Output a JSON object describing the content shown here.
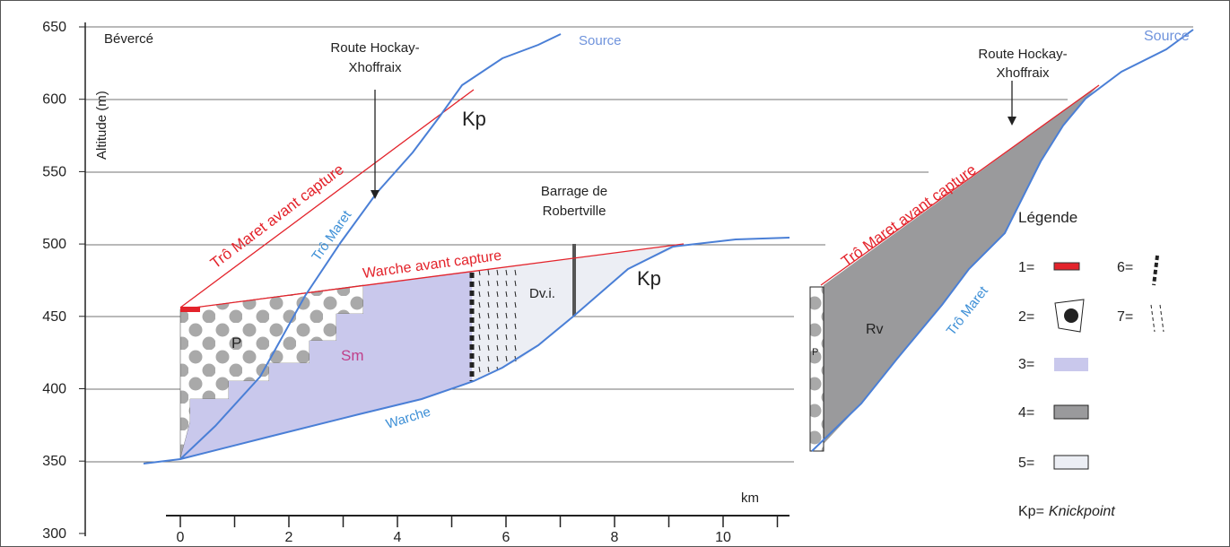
{
  "axis": {
    "y_label": "Altitude (m)",
    "y_ticks": [
      "650",
      "600",
      "550",
      "500",
      "450",
      "400",
      "350",
      "300"
    ],
    "x_unit": "km",
    "x_ticks": [
      "0",
      "2",
      "4",
      "6",
      "8",
      "10"
    ]
  },
  "left_profile": {
    "place": "Bévercé",
    "source": "Source",
    "road": [
      "Route Hockay-",
      "Xhoffraix"
    ],
    "knickpoint_upper": "Kp",
    "tro_maret_before": "Trô Maret avant capture",
    "tro_maret": "Trô Maret",
    "dam": [
      "Barrage de",
      "Robertville"
    ],
    "warche_before": "Warche avant capture",
    "knickpoint_lower": "Kp",
    "unit_dvi": "Dv.i.",
    "unit_p": "P",
    "unit_sm": "Sm",
    "warche": "Warche"
  },
  "right_profile": {
    "source": "Source",
    "road": [
      "Route Hockay-",
      "Xhoffraix"
    ],
    "tro_maret_before": "Trô Maret avant capture",
    "tro_maret": "Trô Maret",
    "unit_rv": "Rv",
    "unit_p": "P"
  },
  "legend": {
    "title": "Légende",
    "items": [
      "1=",
      "2=",
      "3=",
      "4=",
      "5=",
      "6=",
      "7="
    ],
    "note_prefix": "Kp=",
    "note_term": "Knickpoint"
  }
}
